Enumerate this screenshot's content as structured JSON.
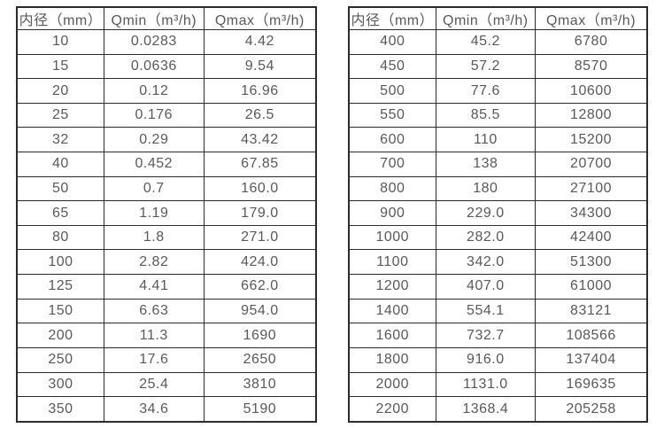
{
  "colors": {
    "background": "#ffffff",
    "border": "#2b2b2b",
    "text": "#595959"
  },
  "tables": [
    {
      "name": "flow-table-small-diameters",
      "headers": [
        "内径（mm）",
        "Qmin（m³/h)",
        "Qmax（m³/h)"
      ],
      "rows": [
        [
          "10",
          "0.0283",
          "4.42"
        ],
        [
          "15",
          "0.0636",
          "9.54"
        ],
        [
          "20",
          "0.12",
          "16.96"
        ],
        [
          "25",
          "0.176",
          "26.5"
        ],
        [
          "32",
          "0.29",
          "43.42"
        ],
        [
          "40",
          "0.452",
          "67.85"
        ],
        [
          "50",
          "0.7",
          "160.0"
        ],
        [
          "65",
          "1.19",
          "179.0"
        ],
        [
          "80",
          "1.8",
          "271.0"
        ],
        [
          "100",
          "2.82",
          "424.0"
        ],
        [
          "125",
          "4.41",
          "662.0"
        ],
        [
          "150",
          "6.63",
          "954.0"
        ],
        [
          "200",
          "11.3",
          "1690"
        ],
        [
          "250",
          "17.6",
          "2650"
        ],
        [
          "300",
          "25.4",
          "3810"
        ],
        [
          "350",
          "34.6",
          "5190"
        ]
      ]
    },
    {
      "name": "flow-table-large-diameters",
      "headers": [
        "内径（mm）",
        "Qmin（m³/h)",
        "Qmax（m³/h)"
      ],
      "rows": [
        [
          "400",
          "45.2",
          "6780"
        ],
        [
          "450",
          "57.2",
          "8570"
        ],
        [
          "500",
          "77.6",
          "10600"
        ],
        [
          "550",
          "85.5",
          "12800"
        ],
        [
          "600",
          "110",
          "15200"
        ],
        [
          "700",
          "138",
          "20700"
        ],
        [
          "800",
          "180",
          "27100"
        ],
        [
          "900",
          "229.0",
          "34300"
        ],
        [
          "1000",
          "282.0",
          "42400"
        ],
        [
          "1100",
          "342.0",
          "51300"
        ],
        [
          "1200",
          "407.0",
          "61000"
        ],
        [
          "1400",
          "554.1",
          "83121"
        ],
        [
          "1600",
          "732.7",
          "108566"
        ],
        [
          "1800",
          "916.0",
          "137404"
        ],
        [
          "2000",
          "1131.0",
          "169635"
        ],
        [
          "2200",
          "1368.4",
          "205258"
        ]
      ]
    }
  ]
}
